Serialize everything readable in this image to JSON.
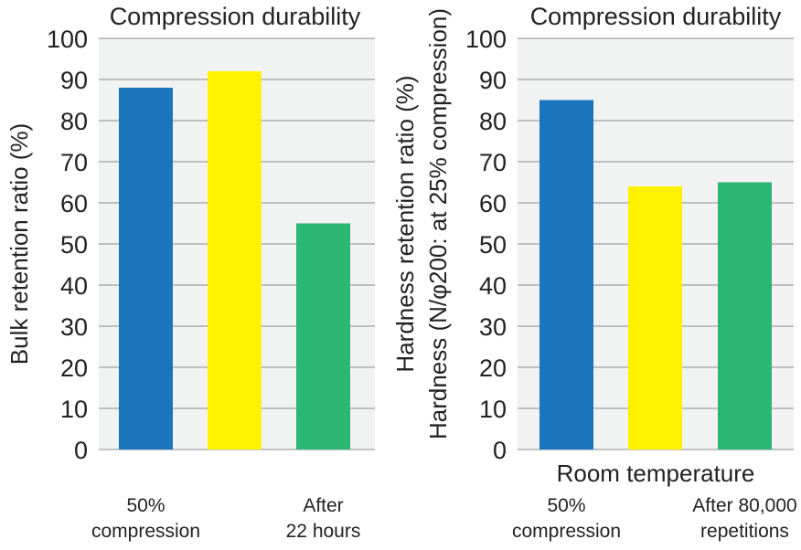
{
  "chart_data": [
    {
      "type": "bar",
      "title": "Compression durability",
      "ylabel": "Bulk retention ratio (%)",
      "xlabel": "",
      "ylim": [
        0,
        100
      ],
      "yticks": [
        "0",
        "10",
        "20",
        "30",
        "40",
        "50",
        "60",
        "70",
        "80",
        "90",
        "100"
      ],
      "grid": true,
      "categories": [
        "50%\ncompression",
        "",
        "After\n22 hours"
      ],
      "values": [
        88,
        92,
        55
      ],
      "colors": [
        "#1b75bc",
        "#fff200",
        "#2bb673"
      ]
    },
    {
      "type": "bar",
      "title": "Compression durability",
      "ylabel": "Hardness retention ratio (%)\nHardness (N/φ200: at 25% compression)",
      "xlabel": "Room temperature",
      "ylim": [
        0,
        100
      ],
      "yticks": [
        "0",
        "10",
        "20",
        "30",
        "40",
        "50",
        "60",
        "70",
        "80",
        "90",
        "100"
      ],
      "grid": true,
      "categories": [
        "50%\ncompression",
        "",
        "After 80,000\nrepetitions"
      ],
      "values": [
        85,
        64,
        65
      ],
      "colors": [
        "#1b75bc",
        "#fff200",
        "#2bb673"
      ]
    }
  ],
  "style": {
    "plot_bg": "#f1f2f2",
    "grid_color": "#8a8c8e"
  }
}
